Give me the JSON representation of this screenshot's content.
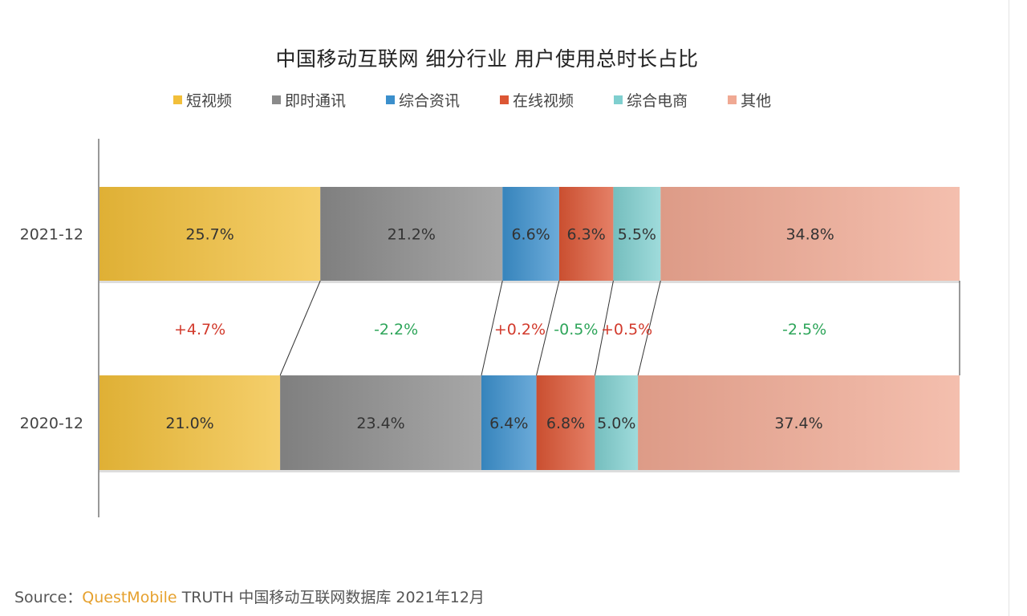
{
  "chart_data": {
    "type": "bar",
    "stacked": true,
    "orientation": "horizontal",
    "normalized": true,
    "title": "中国移动互联网 细分行业 用户使用总时长占比",
    "categories": [
      "2021-12",
      "2020-12"
    ],
    "legend_position": "top",
    "series": [
      {
        "name": "短视频",
        "color": "#f2bf3a",
        "values": [
          25.7,
          21.0
        ],
        "labels": [
          "25.7%",
          "21.0%"
        ]
      },
      {
        "name": "即时通讯",
        "color": "#8a8a8a",
        "values": [
          21.2,
          23.4
        ],
        "labels": [
          "21.2%",
          "23.4%"
        ]
      },
      {
        "name": "综合资讯",
        "color": "#3b8fcc",
        "values": [
          6.6,
          6.4
        ],
        "labels": [
          "6.6%",
          "6.4%"
        ]
      },
      {
        "name": "在线视频",
        "color": "#dc5634",
        "values": [
          6.3,
          6.8
        ],
        "labels": [
          "6.3%",
          "6.8%"
        ]
      },
      {
        "name": "综合电商",
        "color": "#7fcfcf",
        "values": [
          5.5,
          5.0
        ],
        "labels": [
          "5.5%",
          "5.0%"
        ]
      },
      {
        "name": "其他",
        "color": "#f0a993",
        "values": [
          34.8,
          37.4
        ],
        "labels": [
          "34.8%",
          "37.4%"
        ]
      }
    ],
    "changes": [
      "+4.7%",
      "-2.2%",
      "+0.2%",
      "-0.5%",
      "+0.5%",
      "-2.5%"
    ],
    "change_colors": {
      "positive": "#d23a2c",
      "negative": "#2ea55a"
    }
  },
  "source": {
    "prefix": "Source：",
    "brand": "QuestMobile",
    "text": "TRUTH 中国移动互联网数据库 2021年12月"
  }
}
